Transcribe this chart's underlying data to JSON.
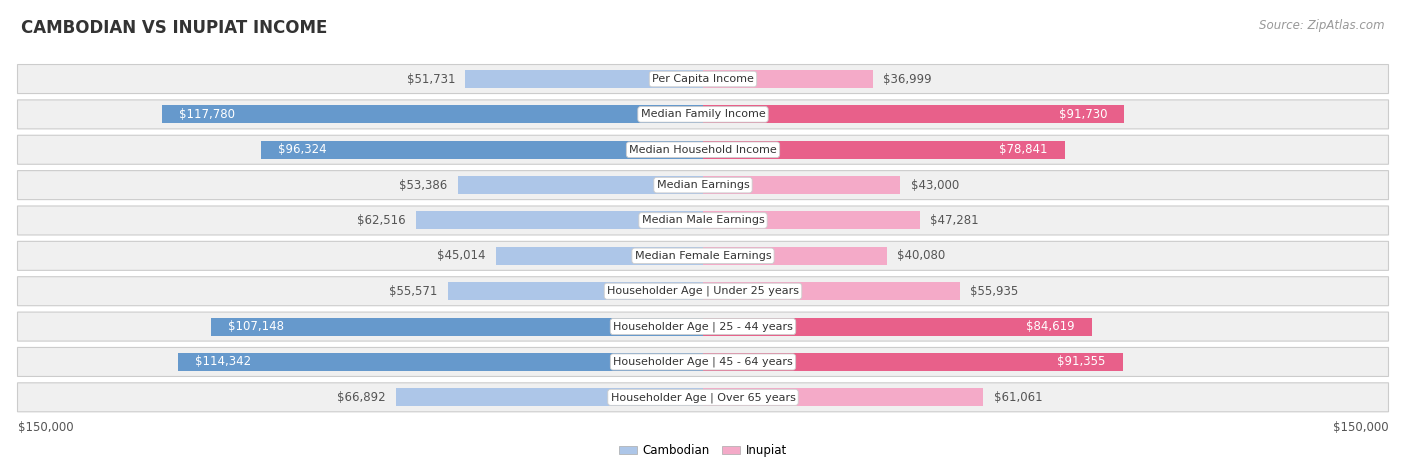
{
  "title": "CAMBODIAN VS INUPIAT INCOME",
  "source": "Source: ZipAtlas.com",
  "categories": [
    "Per Capita Income",
    "Median Family Income",
    "Median Household Income",
    "Median Earnings",
    "Median Male Earnings",
    "Median Female Earnings",
    "Householder Age | Under 25 years",
    "Householder Age | 25 - 44 years",
    "Householder Age | 45 - 64 years",
    "Householder Age | Over 65 years"
  ],
  "cambodian_values": [
    51731,
    117780,
    96324,
    53386,
    62516,
    45014,
    55571,
    107148,
    114342,
    66892
  ],
  "inupiat_values": [
    36999,
    91730,
    78841,
    43000,
    47281,
    40080,
    55935,
    84619,
    91355,
    61061
  ],
  "cambodian_labels": [
    "$51,731",
    "$117,780",
    "$96,324",
    "$53,386",
    "$62,516",
    "$45,014",
    "$55,571",
    "$107,148",
    "$114,342",
    "$66,892"
  ],
  "inupiat_labels": [
    "$36,999",
    "$91,730",
    "$78,841",
    "$43,000",
    "$47,281",
    "$40,080",
    "$55,935",
    "$84,619",
    "$91,355",
    "$61,061"
  ],
  "cambodian_color_light": "#adc6e8",
  "cambodian_color_dark": "#6699cc",
  "inupiat_color_light": "#f4aac8",
  "inupiat_color_dark": "#e8608a",
  "max_value": 150000,
  "xlabel_left": "$150,000",
  "xlabel_right": "$150,000",
  "legend_cambodian": "Cambodian",
  "legend_inupiat": "Inupiat",
  "background_color": "#ffffff",
  "row_bg_color": "#f0f0f0",
  "row_border_color": "#cccccc",
  "label_fontsize": 8.5,
  "title_fontsize": 12,
  "source_fontsize": 8.5,
  "cam_dark_threshold": 80000,
  "inu_dark_threshold": 70000
}
